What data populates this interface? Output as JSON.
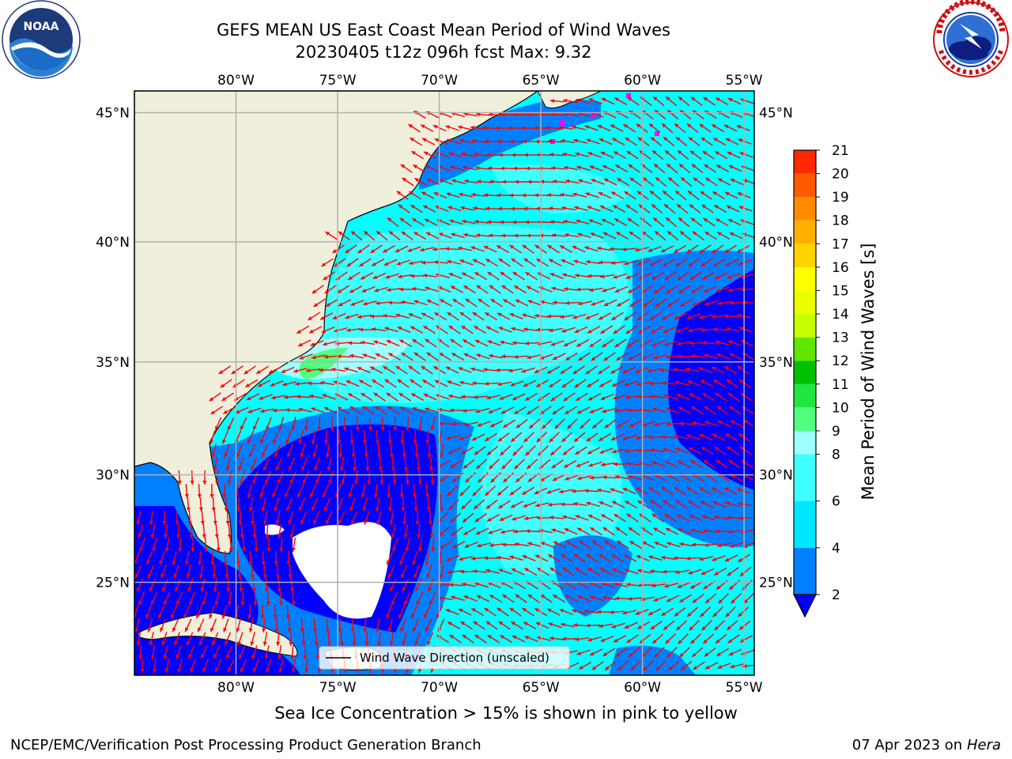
{
  "header": {
    "title_line1": "GEFS MEAN US East Coast Mean Period of Wind Waves",
    "title_line2": "20230405 t12z 096h fcst   Max: 9.32"
  },
  "logos": {
    "left": {
      "icon": "noaa-logo-icon",
      "text": "NOAA"
    },
    "right": {
      "icon": "national-weather-service-logo-icon"
    }
  },
  "map": {
    "lon_labels": [
      "80°W",
      "75°W",
      "70°W",
      "65°W",
      "60°W",
      "55°W"
    ],
    "lat_labels": [
      "45°N",
      "40°N",
      "35°N",
      "30°N",
      "25°N"
    ],
    "lon_values": [
      -80,
      -75,
      -70,
      -65,
      -60,
      -55
    ],
    "lat_values": [
      45,
      40,
      35,
      30,
      25
    ],
    "lon_range": [
      -85,
      -54.5
    ],
    "lat_range": [
      20.5,
      45.8
    ],
    "grid": true,
    "land_color": "#efefdc",
    "arrow_color": "#ff0000",
    "legend_label": "Wind Wave Direction (unscaled)",
    "legend_placement": "bottom-center"
  },
  "colorbar": {
    "label": "Mean Period of Wind Waves [s]",
    "ticks": [
      "2",
      "4",
      "6",
      "8",
      "9",
      "10",
      "11",
      "12",
      "13",
      "14",
      "15",
      "16",
      "17",
      "18",
      "19",
      "20",
      "21"
    ],
    "levels": [
      2,
      4,
      6,
      8,
      9,
      10,
      11,
      12,
      13,
      14,
      15,
      16,
      17,
      18,
      19,
      20,
      21
    ],
    "colors": [
      "#0080ff",
      "#00e6ff",
      "#40ffff",
      "#a0ffff",
      "#50ff80",
      "#20e640",
      "#00c000",
      "#60e600",
      "#c8ff00",
      "#eaff00",
      "#ffff00",
      "#ffd200",
      "#ffb000",
      "#ff8c00",
      "#ff5a00",
      "#ff2800",
      "#ff0000"
    ],
    "under_color": "#0000ff"
  },
  "footer": {
    "ice_note": "Sea Ice Concentration > 15% is shown in pink to yellow",
    "credit": "NCEP/EMC/Verification Post Processing Product Generation Branch",
    "date": "07 Apr 2023 on",
    "host": "Hera"
  }
}
